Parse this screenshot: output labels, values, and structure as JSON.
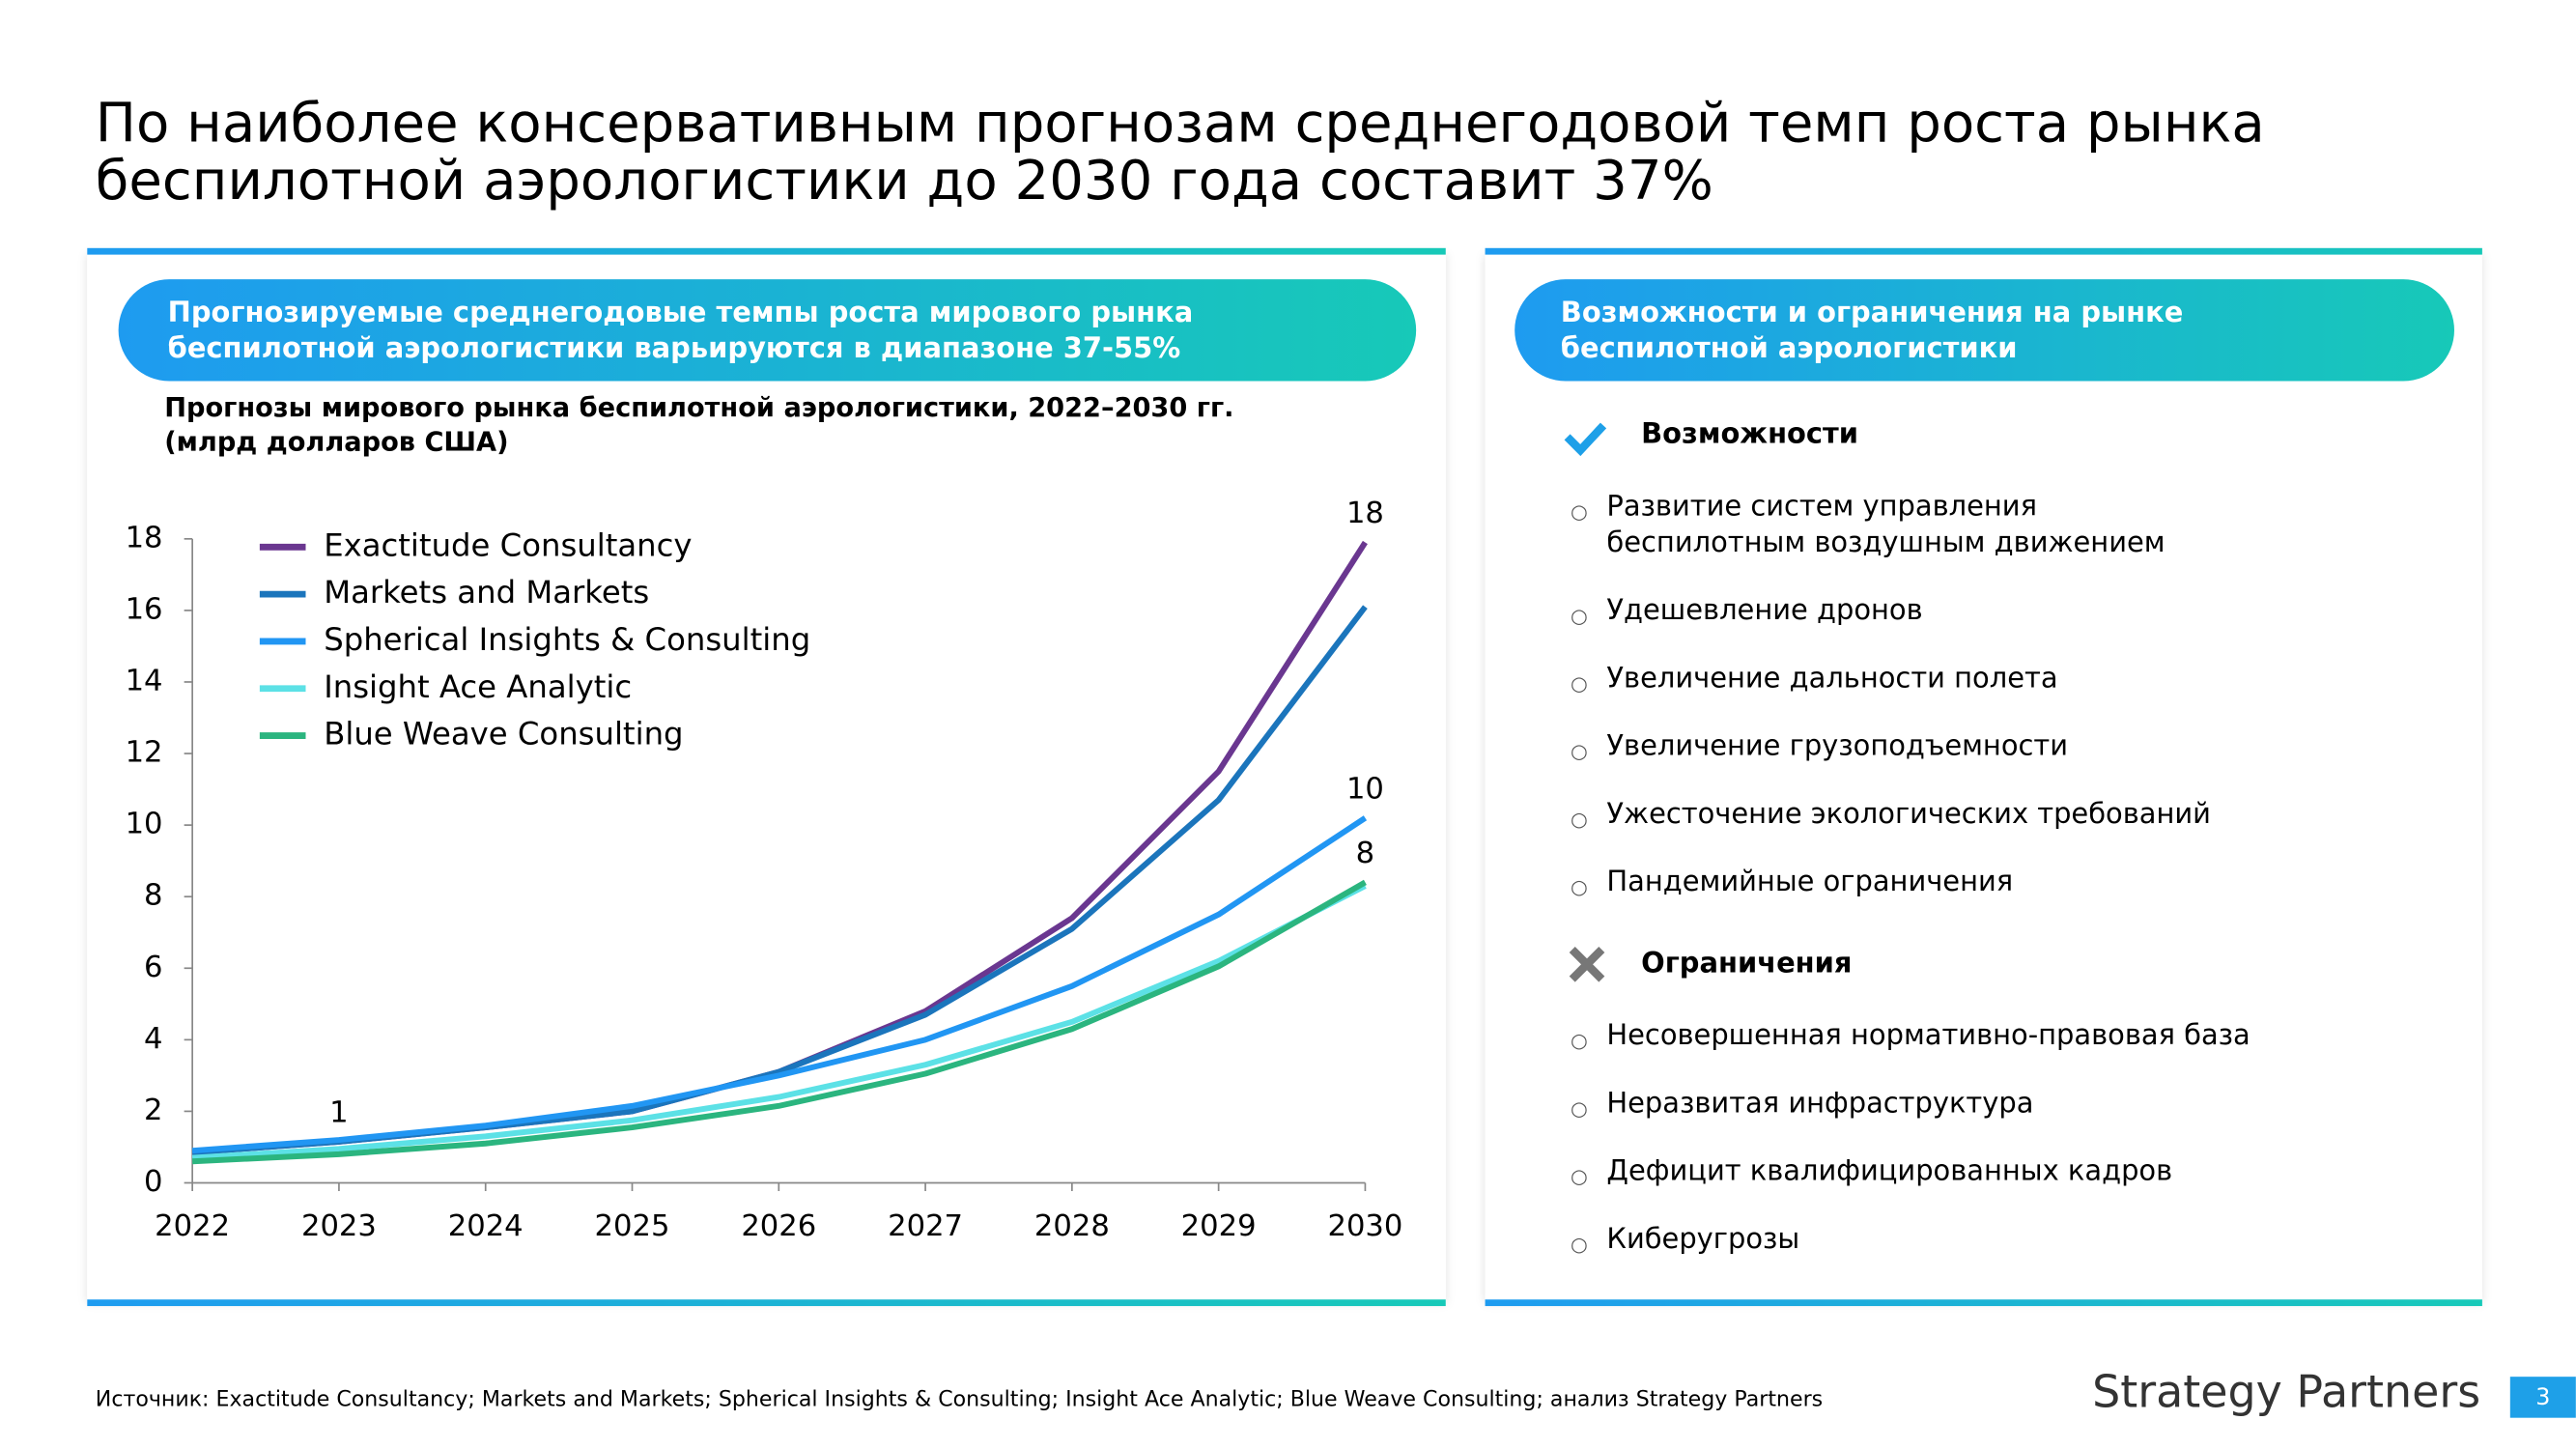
{
  "title": [
    "По наиболее консервативным прогнозам среднегодовой темп роста рынка",
    "беспилотной аэрологистики до 2030 года составит 37%"
  ],
  "left_panel": {
    "header": [
      "Прогнозируемые среднегодовые темпы роста мирового рынка",
      "беспилотной аэрологистики варьируются в диапазоне 37-55%"
    ]
  },
  "chart_data": {
    "type": "line",
    "title": "Прогнозы мирового рынка беспилотной аэрологистики, 2022–2030 гг.",
    "subtitle": "(млрд долларов США)",
    "x": [
      2022,
      2023,
      2024,
      2025,
      2026,
      2027,
      2028,
      2029,
      2030
    ],
    "xlim": [
      2022,
      2030
    ],
    "xticks": [
      2022,
      2023,
      2024,
      2025,
      2026,
      2027,
      2028,
      2029,
      2030
    ],
    "ylim": [
      0,
      18
    ],
    "yticks": [
      0,
      2,
      4,
      6,
      8,
      10,
      12,
      14,
      16,
      18
    ],
    "grid": false,
    "legend": "upper left",
    "series": [
      {
        "name": "Exactitude Consultancy",
        "color": "#6a3790",
        "values": [
          0.85,
          1.15,
          1.55,
          2.0,
          3.1,
          4.8,
          7.4,
          11.5,
          17.9
        ],
        "value_labels": [
          null,
          "1",
          null,
          null,
          null,
          null,
          null,
          null,
          "18"
        ]
      },
      {
        "name": "Markets and Markets",
        "color": "#1b75bc",
        "values": [
          0.85,
          1.15,
          1.55,
          2.0,
          3.1,
          4.7,
          7.1,
          10.7,
          16.1
        ]
      },
      {
        "name": "Spherical Insights & Consulting",
        "color": "#2196f3",
        "values": [
          0.9,
          1.2,
          1.6,
          2.15,
          3.0,
          4.0,
          5.5,
          7.5,
          10.2
        ],
        "value_labels": [
          null,
          null,
          null,
          null,
          null,
          null,
          null,
          null,
          "10"
        ]
      },
      {
        "name": "Insight Ace Analytic",
        "color": "#5ce1e6",
        "values": [
          0.7,
          0.95,
          1.3,
          1.75,
          2.4,
          3.3,
          4.5,
          6.2,
          8.3
        ]
      },
      {
        "name": "Blue Weave Consulting",
        "color": "#2bb57f",
        "values": [
          0.6,
          0.8,
          1.1,
          1.55,
          2.15,
          3.05,
          4.3,
          6.05,
          8.4
        ],
        "value_labels": [
          null,
          null,
          null,
          null,
          null,
          null,
          null,
          null,
          "8"
        ]
      }
    ]
  },
  "right_panel": {
    "header": [
      "Возможности и ограничения на рынке",
      "беспилотной аэрологистики"
    ],
    "opportunities": {
      "title": "Возможности",
      "items": [
        [
          "Развитие систем управления",
          "беспилотным воздушным движением"
        ],
        [
          "Удешевление дронов"
        ],
        [
          "Увеличение дальности полета"
        ],
        [
          "Увеличение грузоподъемности"
        ],
        [
          "Ужесточение экологических требований"
        ],
        [
          "Пандемийные ограничения"
        ]
      ]
    },
    "limitations": {
      "title": "Ограничения",
      "items": [
        [
          "Несовершенная нормативно-правовая база"
        ],
        [
          "Неразвитая инфраструктура"
        ],
        [
          "Дефицит квалифицированных кадров"
        ],
        [
          "Киберугрозы"
        ]
      ]
    }
  },
  "footer": {
    "source": "Источник: Exactitude Consultancy; Markets and Markets; Spherical Insights & Consulting; Insight Ace Analytic; Blue Weave Consulting; анализ Strategy Partners",
    "logo": "Strategy Partners",
    "page": "3"
  }
}
